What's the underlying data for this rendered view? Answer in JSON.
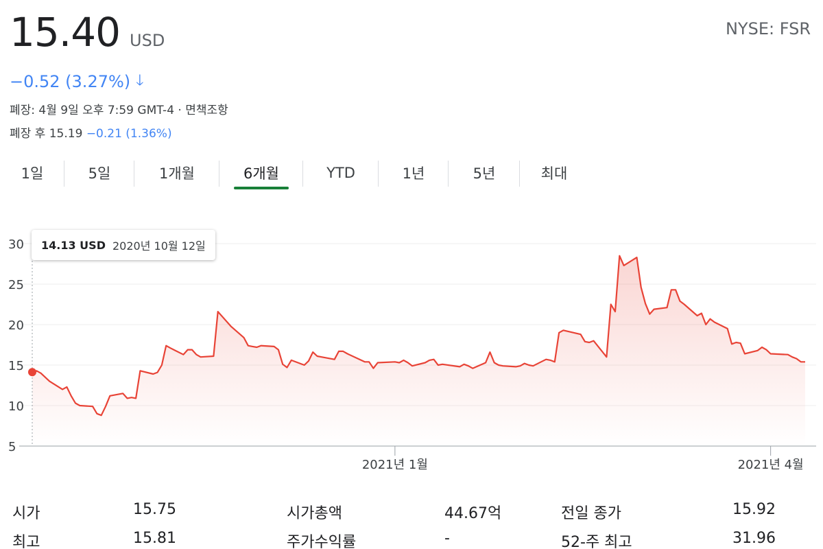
{
  "header": {
    "price": "15.40",
    "currency": "USD",
    "ticker": "NYSE: FSR",
    "change": "−0.52 (3.27%)",
    "change_icon": "arrow-down-icon",
    "close_info": "폐장: 4월 9일 오후 7:59 GMT-4 · 면책조항",
    "after_hours_label": "폐장 후 15.19",
    "after_hours_change": "−0.21 (1.36%)"
  },
  "tabs": [
    {
      "label": "1일"
    },
    {
      "label": "5일"
    },
    {
      "label": "1개월"
    },
    {
      "label": "6개월"
    },
    {
      "label": "YTD"
    },
    {
      "label": "1년"
    },
    {
      "label": "5년"
    },
    {
      "label": "최대"
    }
  ],
  "active_tab": "6개월",
  "tooltip": {
    "price": "14.13 USD",
    "date": "2020년 10월 12일"
  },
  "colors": {
    "line": "#e84336",
    "accent_blue": "#4285f4",
    "tab_underline": "#188038"
  },
  "chart_data": {
    "type": "area",
    "yticks": [
      "30",
      "25",
      "20",
      "15",
      "10",
      "5"
    ],
    "ylim": [
      5,
      30
    ],
    "xlim": [
      "2020-10-12",
      "2021-04-09"
    ],
    "xticks": [
      {
        "label": "2021년 1월",
        "date": "2021-01-04"
      },
      {
        "label": "2021년 4월",
        "date": "2021-04-01"
      }
    ],
    "grid": true,
    "series": [
      {
        "x": [
          "2020-10-12",
          "2020-10-13",
          "2020-10-14",
          "2020-10-15",
          "2020-10-16",
          "2020-10-19",
          "2020-10-20",
          "2020-10-21",
          "2020-10-22",
          "2020-10-23",
          "2020-10-26",
          "2020-10-27",
          "2020-10-28",
          "2020-10-29",
          "2020-10-30",
          "2020-11-02",
          "2020-11-03",
          "2020-11-04",
          "2020-11-05",
          "2020-11-06",
          "2020-11-09",
          "2020-11-10",
          "2020-11-11",
          "2020-11-12",
          "2020-11-13",
          "2020-11-16",
          "2020-11-17",
          "2020-11-18",
          "2020-11-19",
          "2020-11-20",
          "2020-11-23",
          "2020-11-24",
          "2020-11-25",
          "2020-11-27",
          "2020-11-30",
          "2020-12-01",
          "2020-12-02",
          "2020-12-03",
          "2020-12-04",
          "2020-12-07",
          "2020-12-08",
          "2020-12-09",
          "2020-12-10",
          "2020-12-11",
          "2020-12-14",
          "2020-12-15",
          "2020-12-16",
          "2020-12-17",
          "2020-12-18",
          "2020-12-21",
          "2020-12-22",
          "2020-12-23",
          "2020-12-24",
          "2020-12-28",
          "2020-12-29",
          "2020-12-30",
          "2020-12-31",
          "2021-01-04",
          "2021-01-05",
          "2021-01-06",
          "2021-01-07",
          "2021-01-08",
          "2021-01-11",
          "2021-01-12",
          "2021-01-13",
          "2021-01-14",
          "2021-01-15",
          "2021-01-19",
          "2021-01-20",
          "2021-01-21",
          "2021-01-22",
          "2021-01-25",
          "2021-01-26",
          "2021-01-27",
          "2021-01-28",
          "2021-01-29",
          "2021-02-01",
          "2021-02-02",
          "2021-02-03",
          "2021-02-04",
          "2021-02-05",
          "2021-02-08",
          "2021-02-09",
          "2021-02-10",
          "2021-02-11",
          "2021-02-12",
          "2021-02-16",
          "2021-02-17",
          "2021-02-18",
          "2021-02-19",
          "2021-02-22",
          "2021-02-23",
          "2021-02-24",
          "2021-02-25",
          "2021-02-26",
          "2021-03-01",
          "2021-03-02",
          "2021-03-03",
          "2021-03-04",
          "2021-03-05",
          "2021-03-08",
          "2021-03-09",
          "2021-03-10",
          "2021-03-11",
          "2021-03-12",
          "2021-03-15",
          "2021-03-16",
          "2021-03-17",
          "2021-03-18",
          "2021-03-19",
          "2021-03-22",
          "2021-03-23",
          "2021-03-24",
          "2021-03-25",
          "2021-03-26",
          "2021-03-29",
          "2021-03-30",
          "2021-03-31",
          "2021-04-01",
          "2021-04-05",
          "2021-04-06",
          "2021-04-07",
          "2021-04-08",
          "2021-04-09"
        ],
        "values": [
          14.13,
          14.3,
          14.0,
          13.5,
          13.0,
          12.0,
          12.3,
          11.2,
          10.3,
          10.0,
          9.9,
          9.0,
          8.8,
          9.9,
          11.2,
          11.5,
          10.9,
          11.0,
          10.9,
          14.3,
          13.9,
          14.1,
          15.0,
          17.4,
          17.1,
          16.3,
          16.9,
          16.9,
          16.3,
          16.0,
          16.1,
          21.6,
          21.0,
          19.8,
          18.4,
          17.4,
          17.3,
          17.2,
          17.4,
          17.3,
          16.9,
          15.1,
          14.7,
          15.6,
          15.0,
          15.5,
          16.6,
          16.1,
          16.0,
          15.7,
          16.7,
          16.7,
          16.4,
          15.4,
          15.4,
          14.6,
          15.3,
          15.4,
          15.3,
          15.6,
          15.3,
          14.9,
          15.3,
          15.6,
          15.7,
          15.0,
          15.1,
          14.8,
          15.1,
          14.9,
          14.6,
          15.3,
          16.6,
          15.3,
          15.0,
          14.9,
          14.8,
          14.9,
          15.2,
          15.0,
          14.9,
          15.7,
          15.6,
          15.4,
          19.0,
          19.3,
          18.8,
          17.9,
          17.8,
          18.0,
          16.0,
          22.5,
          21.6,
          28.5,
          27.3,
          28.3,
          24.6,
          22.6,
          21.3,
          21.9,
          22.1,
          24.3,
          24.3,
          22.9,
          22.5,
          21.1,
          21.4,
          20.0,
          20.7,
          20.3,
          19.5,
          17.6,
          17.8,
          17.7,
          16.4,
          16.8,
          17.2,
          16.9,
          16.4,
          16.3,
          16.0,
          15.8,
          15.4,
          15.4
        ]
      }
    ]
  },
  "stats": {
    "rows": [
      [
        {
          "label": "시가",
          "value": "15.75"
        },
        {
          "label": "시가총액",
          "value": "44.67억"
        },
        {
          "label": "전일 종가",
          "value": "15.92"
        }
      ],
      [
        {
          "label": "최고",
          "value": "15.81"
        },
        {
          "label": "주가수익률",
          "value": "-"
        },
        {
          "label": "52-주 최고",
          "value": "31.96"
        }
      ]
    ]
  }
}
